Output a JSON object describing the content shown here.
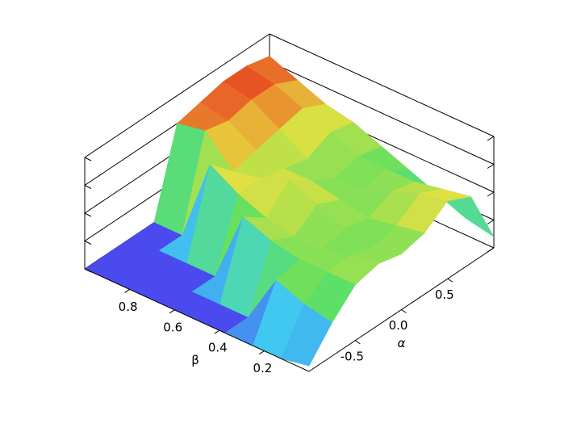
{
  "chart_data": {
    "type": "surface",
    "xlabel": "α",
    "ylabel": "β",
    "x": [
      -1,
      -0.75,
      -0.5,
      -0.25,
      0,
      0.25,
      0.5,
      0.75,
      1
    ],
    "y": [
      0,
      0.125,
      0.25,
      0.375,
      0.5,
      0.625,
      0.75,
      0.875,
      1
    ],
    "z": [
      [
        0.05,
        0.3,
        0.5,
        0.55,
        0.5,
        0.55,
        0.7,
        0.6,
        0.1
      ],
      [
        0,
        0.35,
        0.5,
        0.5,
        0.45,
        0.5,
        0.65,
        0.55,
        0.15
      ],
      [
        0,
        0.45,
        0.5,
        0.45,
        0.5,
        0.45,
        0.55,
        0.5,
        0.25
      ],
      [
        0,
        0,
        0.55,
        0.45,
        0.6,
        0.5,
        0.45,
        0.5,
        0.35
      ],
      [
        0,
        0,
        0.65,
        0.5,
        0.7,
        0.55,
        0.45,
        0.5,
        0.45
      ],
      [
        0,
        0,
        0,
        0.6,
        0.6,
        0.55,
        0.5,
        0.6,
        0.55
      ],
      [
        0,
        0,
        0,
        0.75,
        0.55,
        0.6,
        0.65,
        0.7,
        0.6
      ],
      [
        0,
        0,
        0,
        0,
        0.8,
        0.75,
        0.8,
        0.8,
        0.7
      ],
      [
        0,
        0,
        0,
        0,
        0.75,
        0.8,
        0.85,
        0.85,
        0.8
      ]
    ],
    "xlim": [
      -1,
      1
    ],
    "ylim": [
      0,
      1
    ],
    "zlim": [
      0,
      1
    ],
    "xticks": [
      -0.5,
      {
        "value": 0,
        "label": "0.0"
      },
      0.5
    ],
    "yticks": [
      0.2,
      0.4,
      0.6,
      0.8
    ],
    "zticks": [
      0,
      0.25,
      0.5,
      0.75,
      1
    ],
    "colormap": [
      "#4a4aee",
      "#40d0f0",
      "#60e060",
      "#e8e040",
      "#e84020"
    ]
  }
}
